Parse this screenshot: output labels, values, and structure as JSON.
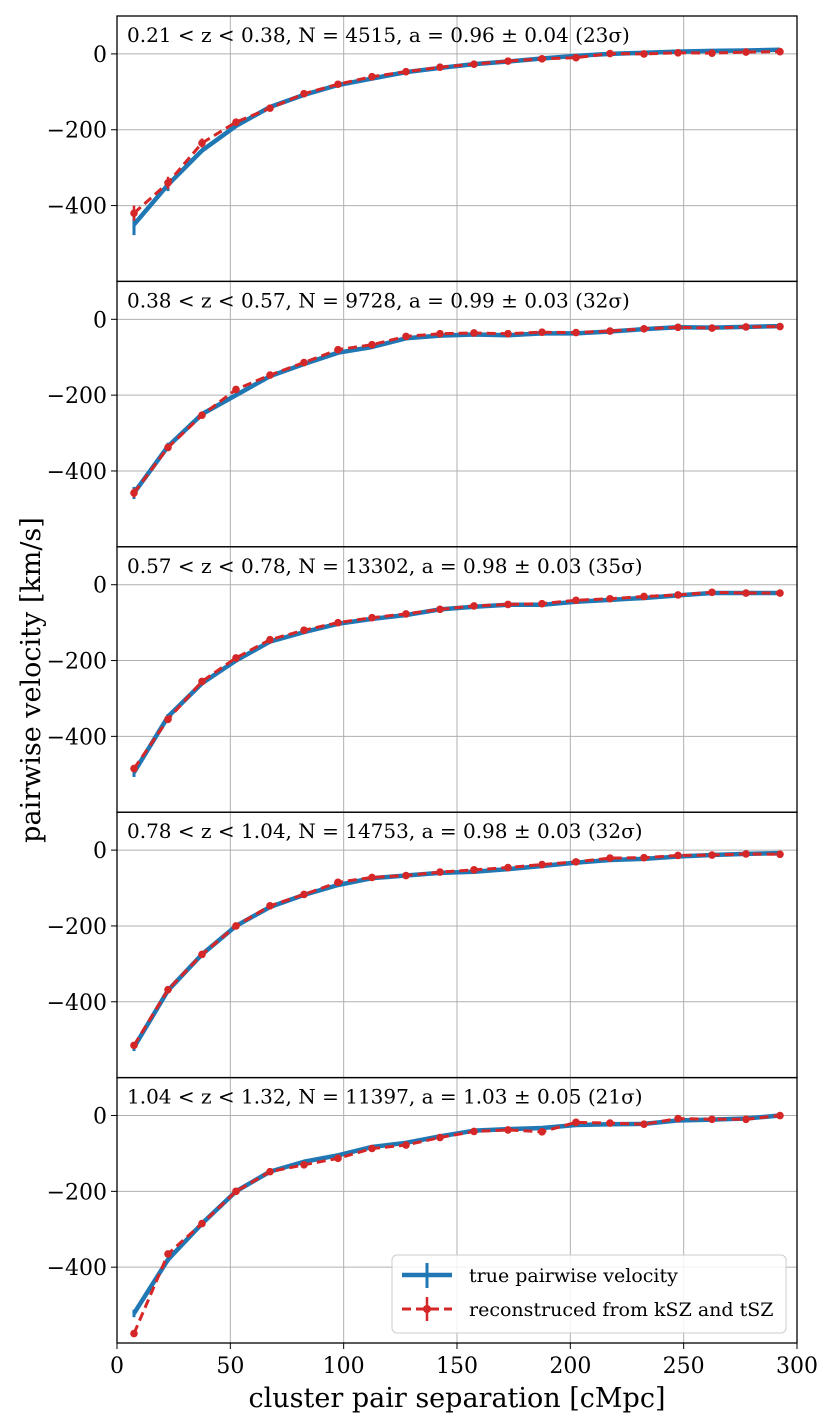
{
  "chart_data": {
    "type": "line",
    "xlabel": "cluster pair separation [cMpc]",
    "ylabel": "pairwise velocity [km/s]",
    "xlim": [
      0,
      300
    ],
    "ylim": [
      -600,
      100
    ],
    "x_ticks": [
      0,
      50,
      100,
      150,
      200,
      250,
      300
    ],
    "y_ticks": [
      -400,
      -200,
      0
    ],
    "grid": true,
    "x": [
      7.5,
      22.5,
      37.5,
      52.5,
      67.5,
      82.5,
      97.5,
      112.5,
      127.5,
      142.5,
      157.5,
      172.5,
      187.5,
      202.5,
      217.5,
      232.5,
      247.5,
      262.5,
      277.5,
      292.5
    ],
    "legend": {
      "placement": "lower-right",
      "entries": [
        "true pairwise velocity",
        "reconstruced from kSZ and tSZ"
      ]
    },
    "colors": {
      "true": "#1f77b4",
      "reconstructed": "#d62728",
      "grid": "#b0b0b0"
    },
    "panels": [
      {
        "annotation": "0.21 < z < 0.38, N = 4515, a = 0.96 ± 0.04 (23σ)",
        "series": [
          {
            "name": "true pairwise velocity",
            "values": [
              -450,
              -345,
              -255,
              -190,
              -140,
              -108,
              -82,
              -65,
              -48,
              -37,
              -27,
              -20,
              -12,
              -5,
              0,
              3,
              6,
              8,
              9,
              11
            ]
          },
          {
            "name": "reconstruced from kSZ and tSZ",
            "values": [
              -420,
              -340,
              -235,
              -180,
              -143,
              -105,
              -80,
              -60,
              -47,
              -35,
              -27,
              -19,
              -13,
              -10,
              1,
              0,
              3,
              2,
              5,
              6
            ]
          }
        ]
      },
      {
        "annotation": "0.38 < z < 0.57, N = 9728, a = 0.99 ± 0.03 (32σ)",
        "series": [
          {
            "name": "true pairwise velocity",
            "values": [
              -458,
              -335,
              -250,
              -200,
              -150,
              -118,
              -88,
              -73,
              -50,
              -43,
              -40,
              -42,
              -37,
              -37,
              -32,
              -26,
              -21,
              -22,
              -20,
              -18
            ]
          },
          {
            "name": "reconstruced from kSZ and tSZ",
            "values": [
              -458,
              -338,
              -253,
              -185,
              -147,
              -114,
              -80,
              -67,
              -45,
              -38,
              -36,
              -38,
              -34,
              -35,
              -31,
              -25,
              -21,
              -23,
              -20,
              -19
            ]
          }
        ]
      },
      {
        "annotation": "0.57 < z < 0.78, N = 13302, a = 0.98 ± 0.03 (35σ)",
        "series": [
          {
            "name": "true pairwise velocity",
            "values": [
              -495,
              -348,
              -260,
              -200,
              -150,
              -125,
              -103,
              -90,
              -80,
              -65,
              -58,
              -53,
              -53,
              -45,
              -40,
              -35,
              -28,
              -22,
              -22,
              -22
            ]
          },
          {
            "name": "reconstruced from kSZ and tSZ",
            "values": [
              -485,
              -355,
              -255,
              -193,
              -145,
              -120,
              -100,
              -87,
              -77,
              -65,
              -56,
              -52,
              -50,
              -41,
              -37,
              -31,
              -27,
              -20,
              -22,
              -22
            ]
          }
        ]
      },
      {
        "annotation": "0.78 < z < 1.04, N = 14753, a = 0.98 ± 0.03 (32σ)",
        "series": [
          {
            "name": "true pairwise velocity",
            "values": [
              -520,
              -370,
              -275,
              -200,
              -150,
              -118,
              -92,
              -74,
              -67,
              -60,
              -57,
              -50,
              -42,
              -33,
              -26,
              -23,
              -17,
              -13,
              -10,
              -8
            ]
          },
          {
            "name": "reconstruced from kSZ and tSZ",
            "values": [
              -515,
              -368,
              -275,
              -200,
              -147,
              -117,
              -85,
              -72,
              -67,
              -58,
              -52,
              -46,
              -38,
              -31,
              -21,
              -20,
              -14,
              -13,
              -10,
              -11
            ]
          }
        ]
      },
      {
        "annotation": "1.04 < z < 1.32, N = 11397, a = 1.03 ± 0.05 (21σ)",
        "series": [
          {
            "name": "true pairwise velocity",
            "values": [
              -522,
              -380,
              -285,
              -200,
              -148,
              -122,
              -105,
              -83,
              -72,
              -55,
              -40,
              -36,
              -33,
              -25,
              -23,
              -22,
              -13,
              -11,
              -8,
              0
            ]
          },
          {
            "name": "reconstruced from kSZ and tSZ",
            "values": [
              -575,
              -365,
              -285,
              -200,
              -148,
              -130,
              -113,
              -87,
              -78,
              -58,
              -42,
              -38,
              -43,
              -18,
              -20,
              -23,
              -8,
              -10,
              -10,
              0
            ]
          }
        ]
      }
    ]
  }
}
